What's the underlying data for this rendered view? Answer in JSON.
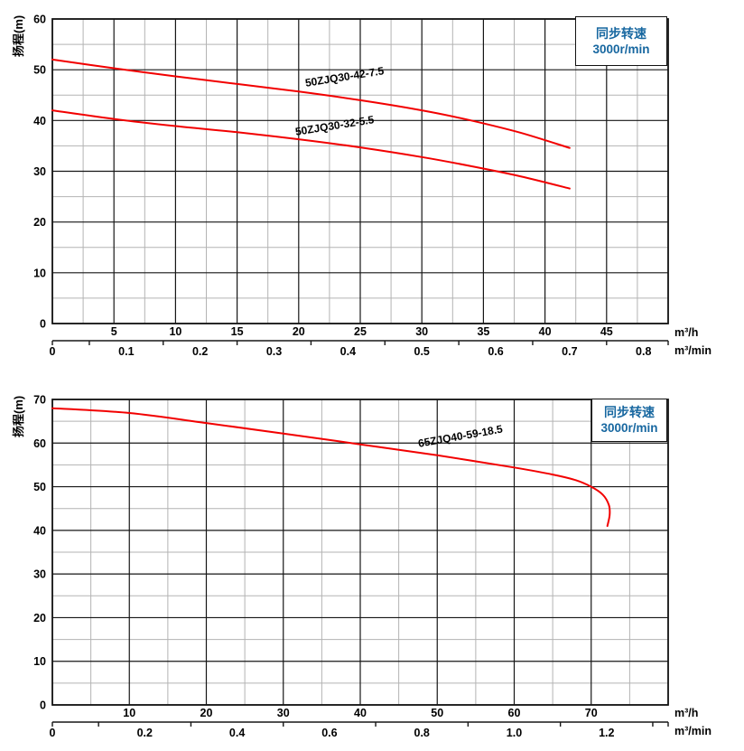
{
  "colors": {
    "curve": "#f20000",
    "grid_major": "#161616",
    "grid_minor": "#b3b3b3",
    "frame": "#161616",
    "legend_text": "#1767a0",
    "text": "#000000"
  },
  "chart_data": [
    {
      "type": "line",
      "y_axis": {
        "label": "扬程(m)",
        "min": 0,
        "max": 60,
        "major": 10,
        "minor": 5,
        "tick_labels": [
          "0",
          "10",
          "20",
          "30",
          "40",
          "50",
          "60"
        ]
      },
      "x_axis": {
        "min": 0,
        "max": 50,
        "major": 5,
        "minor": 2.5,
        "unit": "m³/h",
        "tick_labels": [
          "5",
          "10",
          "15",
          "20",
          "25",
          "30",
          "35",
          "40",
          "45"
        ]
      },
      "x_axis2": {
        "unit": "m³/min",
        "primary_per_unit": 60,
        "tick_labels": [
          "0",
          "0.1",
          "0.2",
          "0.3",
          "0.4",
          "0.5",
          "0.6",
          "0.7",
          "0.8"
        ],
        "minor_ticks": [
          0.05,
          0.15,
          0.25,
          0.35,
          0.45,
          0.55,
          0.65,
          0.75
        ]
      },
      "legend": {
        "line1": "同步转速",
        "line2": "3000r/min"
      },
      "series": [
        {
          "label": "50ZJQ30-42-7.5",
          "points": [
            [
              0,
              52
            ],
            [
              5,
              50.3
            ],
            [
              10,
              48.7
            ],
            [
              15,
              47.2
            ],
            [
              20,
              45.7
            ],
            [
              25,
              44
            ],
            [
              30,
              42
            ],
            [
              34,
              40
            ],
            [
              38,
              37.6
            ],
            [
              42,
              34.6
            ]
          ]
        },
        {
          "label": "50ZJQ30-32-5.5",
          "points": [
            [
              0,
              42
            ],
            [
              5,
              40.3
            ],
            [
              10,
              38.9
            ],
            [
              15,
              37.7
            ],
            [
              20,
              36.3
            ],
            [
              25,
              34.7
            ],
            [
              30,
              32.8
            ],
            [
              34,
              31
            ],
            [
              38,
              29
            ],
            [
              42,
              26.6
            ]
          ]
        }
      ]
    },
    {
      "type": "line",
      "y_axis": {
        "label": "扬程(m)",
        "min": 0,
        "max": 70,
        "major": 10,
        "minor": 5,
        "tick_labels": [
          "0",
          "10",
          "20",
          "30",
          "40",
          "50",
          "60",
          "70"
        ]
      },
      "x_axis": {
        "min": 0,
        "max": 80,
        "major": 10,
        "minor": 5,
        "unit": "m³/h",
        "tick_labels": [
          "10",
          "20",
          "30",
          "40",
          "50",
          "60",
          "70"
        ]
      },
      "x_axis2": {
        "unit": "m³/min",
        "primary_per_unit": 60,
        "tick_labels": [
          "0",
          "0.2",
          "0.4",
          "0.6",
          "0.8",
          "1.0",
          "1.2"
        ],
        "minor_ticks": [
          0.1,
          0.3,
          0.5,
          0.7,
          0.9,
          1.1,
          1.3
        ]
      },
      "legend": {
        "line1": "同步转速",
        "line2": "3000r/min"
      },
      "series": [
        {
          "label": "65ZJQ40-59-18.5",
          "points": [
            [
              0,
              68
            ],
            [
              10,
              66.9
            ],
            [
              20,
              64.6
            ],
            [
              30,
              62.2
            ],
            [
              40,
              59.7
            ],
            [
              50,
              57.2
            ],
            [
              60,
              54.4
            ],
            [
              65,
              52.8
            ],
            [
              68,
              51.5
            ],
            [
              70,
              50
            ],
            [
              71.5,
              48.2
            ],
            [
              72.3,
              45.8
            ],
            [
              72.4,
              43.5
            ],
            [
              72.1,
              41
            ]
          ]
        }
      ]
    }
  ]
}
